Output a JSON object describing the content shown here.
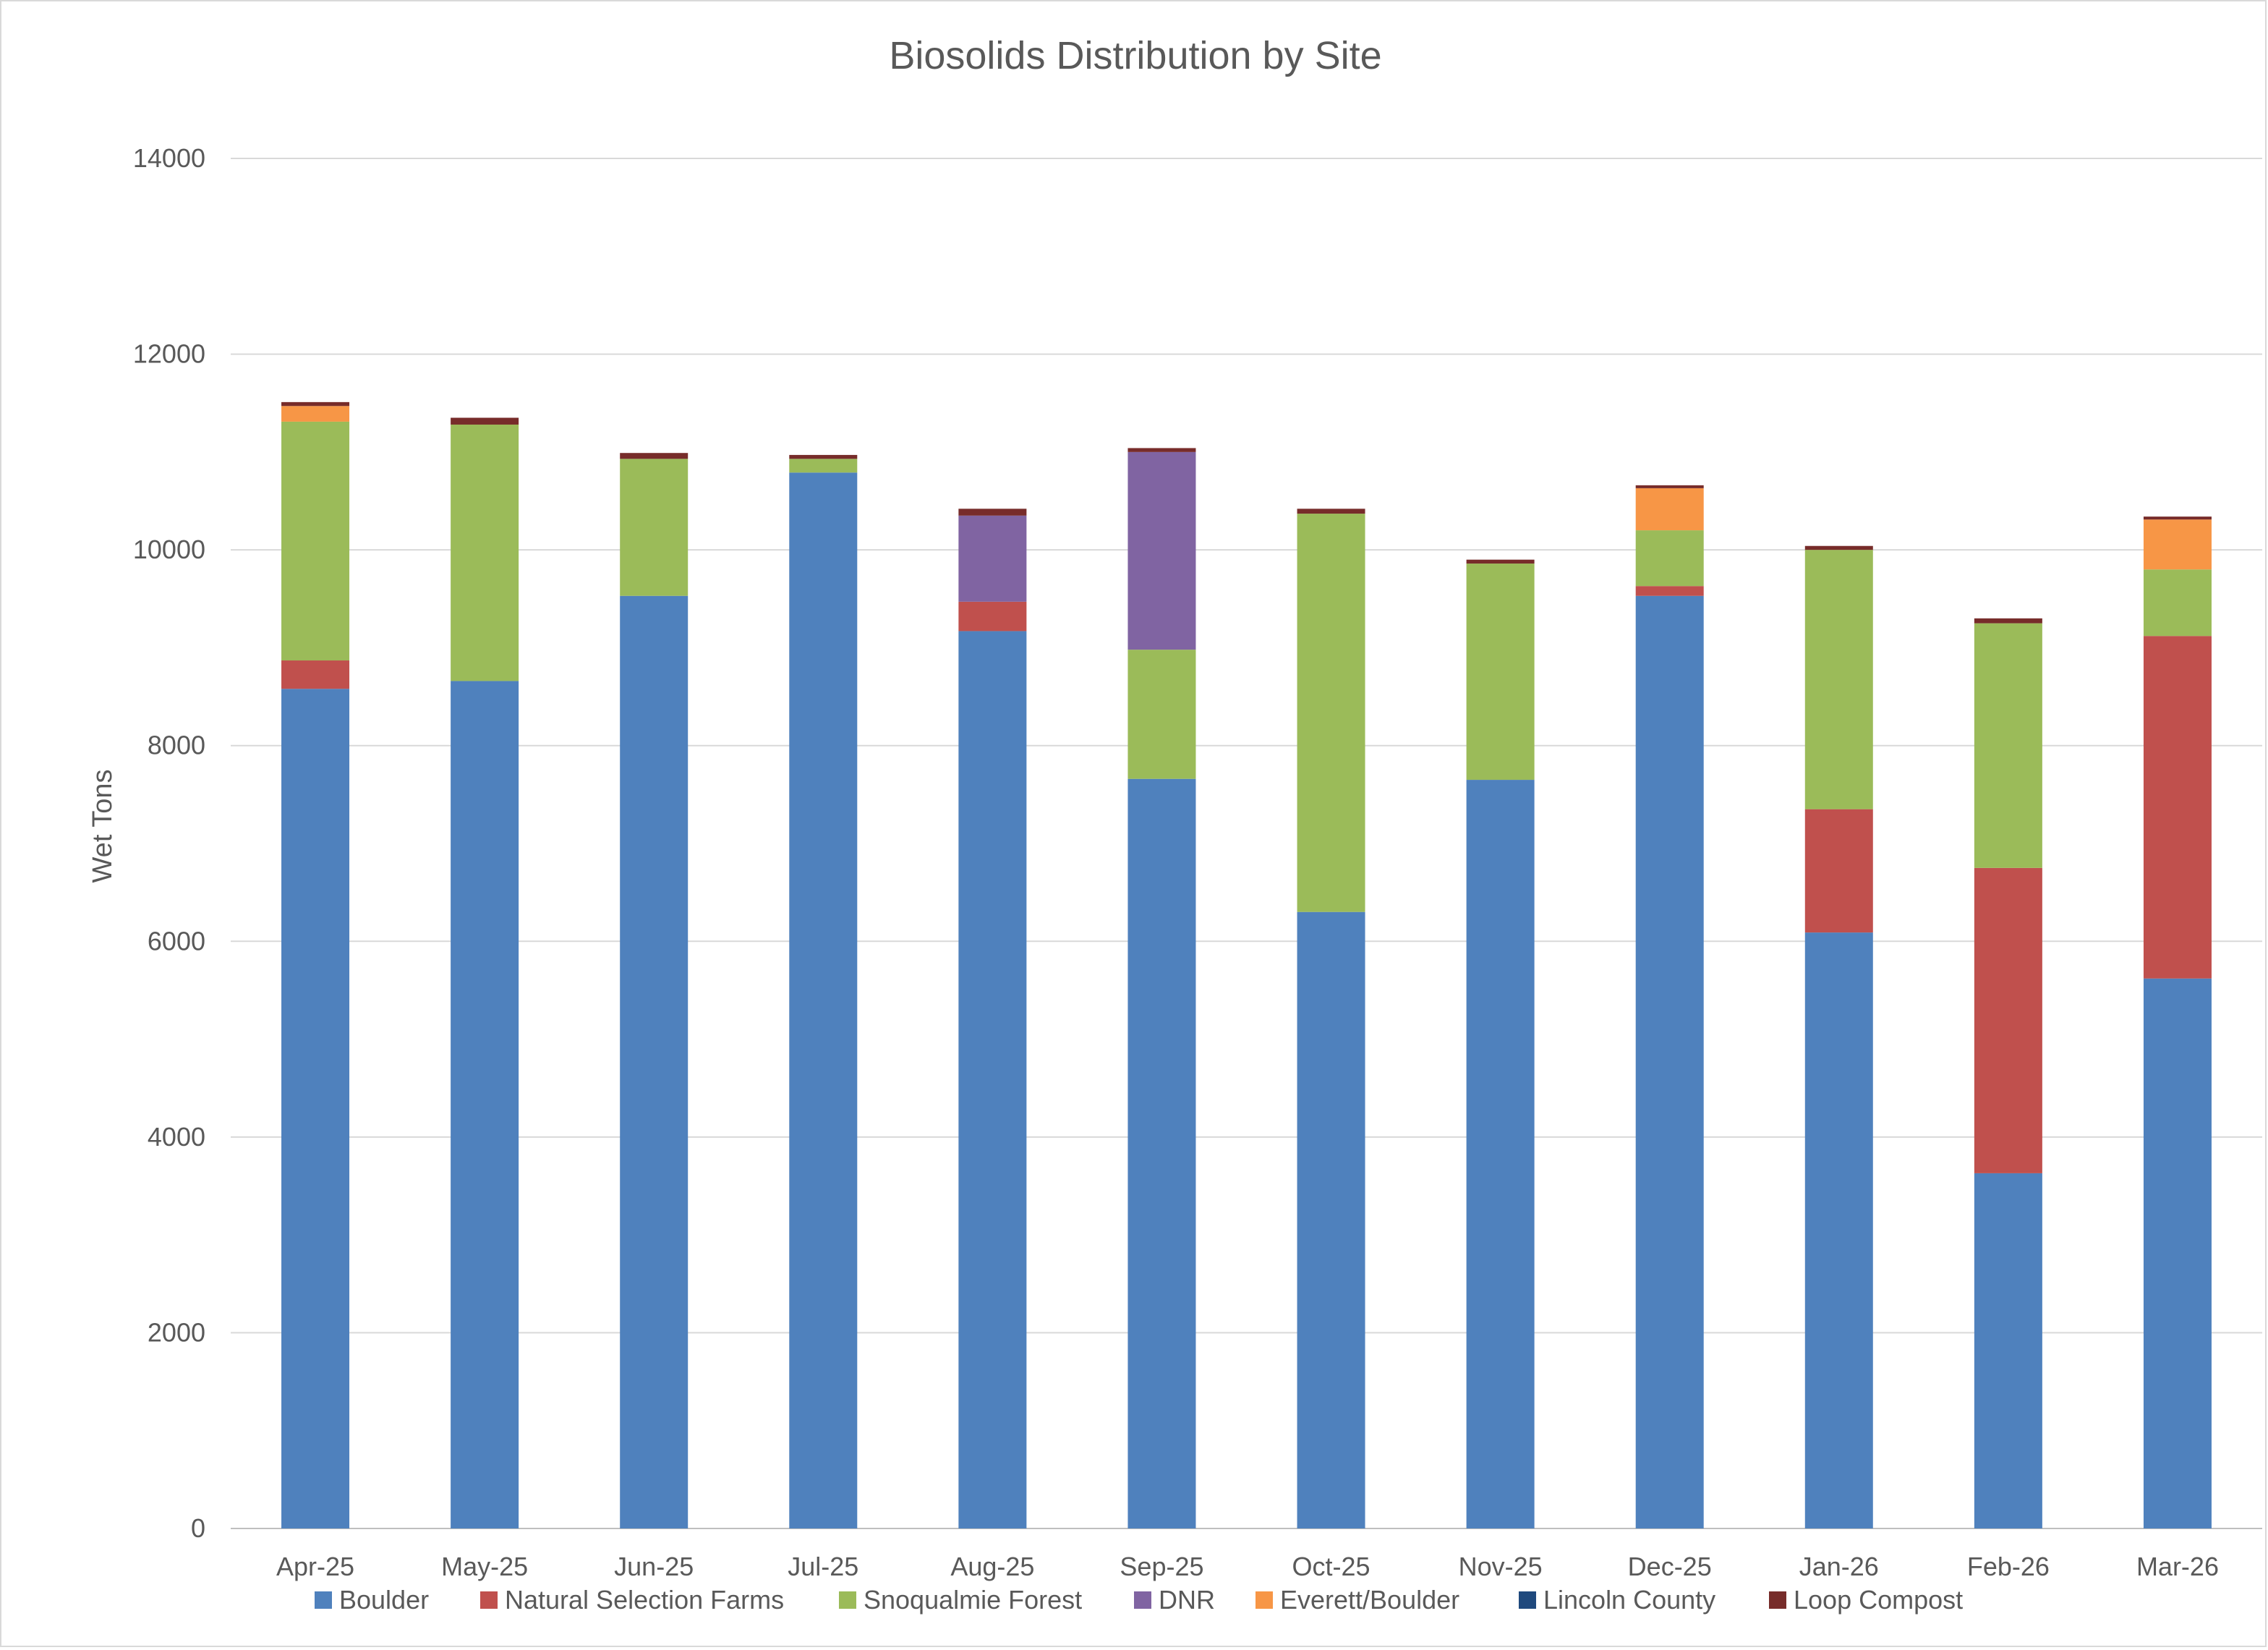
{
  "chart_data": {
    "type": "bar",
    "stacked": true,
    "title": "Biosolids Distribution by Site",
    "xlabel": "",
    "ylabel": "Wet Tons",
    "ylim": [
      0,
      14000
    ],
    "yticks": [
      0,
      2000,
      4000,
      6000,
      8000,
      10000,
      12000,
      14000
    ],
    "grid": true,
    "legend_position": "bottom",
    "categories": [
      "Apr-25",
      "May-25",
      "Jun-25",
      "Jul-25",
      "Aug-25",
      "Sep-25",
      "Oct-25",
      "Nov-25",
      "Dec-25",
      "Jan-26",
      "Feb-26",
      "Mar-26"
    ],
    "series": [
      {
        "name": "Boulder",
        "color": "#4f81bd",
        "values": [
          8580,
          8660,
          9530,
          10790,
          9170,
          7660,
          6300,
          7650,
          9530,
          6090,
          3630,
          5620
        ]
      },
      {
        "name": "Natural Selection Farms",
        "color": "#c0504d",
        "values": [
          290,
          0,
          0,
          0,
          300,
          0,
          0,
          0,
          100,
          1260,
          3120,
          3500
        ]
      },
      {
        "name": "Snoqualmie Forest",
        "color": "#9bbb59",
        "values": [
          2440,
          2620,
          1400,
          140,
          0,
          1320,
          4070,
          2210,
          570,
          2650,
          2500,
          680
        ]
      },
      {
        "name": "DNR",
        "color": "#8064a2",
        "values": [
          0,
          0,
          0,
          0,
          880,
          2020,
          0,
          0,
          0,
          0,
          0,
          0
        ]
      },
      {
        "name": "Everett/Boulder",
        "color": "#f79646",
        "values": [
          160,
          0,
          0,
          0,
          0,
          0,
          0,
          0,
          430,
          0,
          0,
          510
        ]
      },
      {
        "name": "Lincoln County",
        "color": "#1f497d",
        "values": [
          0,
          0,
          0,
          0,
          0,
          0,
          0,
          0,
          0,
          0,
          0,
          0
        ]
      },
      {
        "name": "Loop Compost",
        "color": "#772c2a",
        "values": [
          40,
          70,
          60,
          40,
          70,
          40,
          50,
          40,
          30,
          40,
          50,
          30
        ]
      }
    ]
  }
}
